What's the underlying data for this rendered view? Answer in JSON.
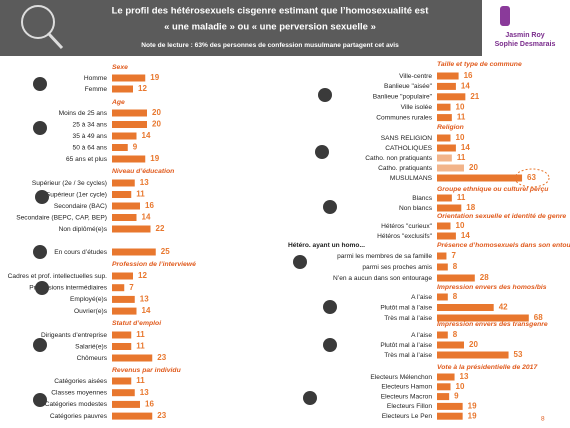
{
  "header": {
    "title_lines": [
      "Le profil des hétérosexuels cisgenre estimant que l’homosexualité est",
      "« une maladie » ou « une perversion sexuelle »"
    ],
    "note": "Note de lecture : 63% des personnes  de confession musulmane partagent cet avis",
    "logo": [
      "Jasmin Roy",
      "Sophie Desmarais"
    ],
    "page_number": "8"
  },
  "chart_data": [
    {
      "type": "bar",
      "title": "Sexe",
      "categories": [
        "Homme",
        "Femme"
      ],
      "values": [
        19,
        12
      ],
      "color": "#e8772e"
    },
    {
      "type": "bar",
      "title": "Age",
      "categories": [
        "Moins de 25 ans",
        "25 à 34 ans",
        "35 à 49 ans",
        "50 à 64 ans",
        "65 ans et plus"
      ],
      "values": [
        20,
        20,
        14,
        9,
        19
      ],
      "color": "#e8772e"
    },
    {
      "type": "bar",
      "title": "Niveau d’éducation",
      "categories": [
        "Supérieur (2e / 3e cycles)",
        "Supérieur (1er cycle)",
        "Secondaire (BAC)",
        "Secondaire (BEPC, CAP, BEP)",
        "Non diplômé(e)s"
      ],
      "values": [
        13,
        11,
        16,
        14,
        22
      ],
      "color": "#e8772e"
    },
    {
      "type": "bar",
      "categories": [
        "En cours d’études"
      ],
      "values": [
        25
      ],
      "color": "#e8772e"
    },
    {
      "type": "bar",
      "title": "Profession de l’interviewé",
      "categories": [
        "Cadres et prof. intellectuelles sup.",
        "Professions intermédiaires",
        "Employé(e)s",
        "Ouvrier(e)s"
      ],
      "values": [
        12,
        7,
        13,
        14
      ],
      "color": "#e8772e"
    },
    {
      "type": "bar",
      "title": "Statut d’emploi",
      "categories": [
        "Dirigeants d’entreprise",
        "Salarié(e)s",
        "Chômeurs"
      ],
      "values": [
        11,
        11,
        23
      ],
      "color": "#e8772e"
    },
    {
      "type": "bar",
      "title": "Revenus par individu",
      "categories": [
        "Catégories aisées",
        "Classes moyennes",
        "Catégories modestes",
        "Catégories pauvres"
      ],
      "values": [
        11,
        13,
        16,
        23
      ],
      "color": "#e8772e"
    },
    {
      "type": "bar",
      "title": "Taille et type de commune",
      "categories": [
        "Ville-centre",
        "Banlieue \"aisée\"",
        "Banlieue \"populaire\"",
        "Ville isolée",
        "Communes rurales"
      ],
      "values": [
        16,
        14,
        21,
        10,
        11
      ],
      "color": "#e8772e"
    },
    {
      "type": "bar",
      "title": "Religion",
      "categories": [
        "SANS RELIGION",
        "CATHOLIQUES",
        "Catho. non pratiquants",
        "Catho. pratiquants",
        "MUSULMANS"
      ],
      "values": [
        10,
        14,
        11,
        20,
        63
      ],
      "color": "#e8772e",
      "colors": [
        "#e8772e",
        "#e8772e",
        "#f2b48a",
        "#f2b48a",
        "#e8772e"
      ]
    },
    {
      "type": "bar",
      "title": "Groupe ethnique ou culturel perçu",
      "categories": [
        "Blancs",
        "Non blancs"
      ],
      "values": [
        11,
        18
      ],
      "color": "#e8772e"
    },
    {
      "type": "bar",
      "title": "Orientation sexuelle et identité de genre",
      "categories": [
        "Hétéros \"curieux\"",
        "Hétéros \"exclusifs\""
      ],
      "values": [
        10,
        14
      ],
      "color": "#e8772e"
    },
    {
      "type": "bar",
      "title": "Présence d’homosexuels dans son entourage",
      "annotation": "Hétéro. ayant un homo...",
      "categories": [
        "parmi les membres de sa famille",
        "parmi ses proches amis",
        "N’en a aucun dans son entourage"
      ],
      "values": [
        7,
        8,
        28
      ],
      "color": "#e8772e"
    },
    {
      "type": "bar",
      "title": "Impression envers des homos/bis",
      "categories": [
        "A l’aise",
        "Plutôt mal à l’aise",
        "Très mal à l’aise"
      ],
      "values": [
        8,
        42,
        68
      ],
      "color": "#e8772e"
    },
    {
      "type": "bar",
      "title": "Impression envers des transgenre",
      "categories": [
        "A l’aise",
        "Plutôt mal à l’aise",
        "Très mal à l’aise"
      ],
      "values": [
        8,
        20,
        53
      ],
      "color": "#e8772e"
    },
    {
      "type": "bar",
      "title": "Vote à la présidentielle de 2017",
      "categories": [
        "Electeurs Mélenchon",
        "Electeurs Hamon",
        "Electeurs Macron",
        "Electeurs Fillon",
        "Electeurs Le Pen"
      ],
      "values": [
        13,
        10,
        9,
        19,
        19
      ],
      "color": "#e8772e"
    }
  ]
}
